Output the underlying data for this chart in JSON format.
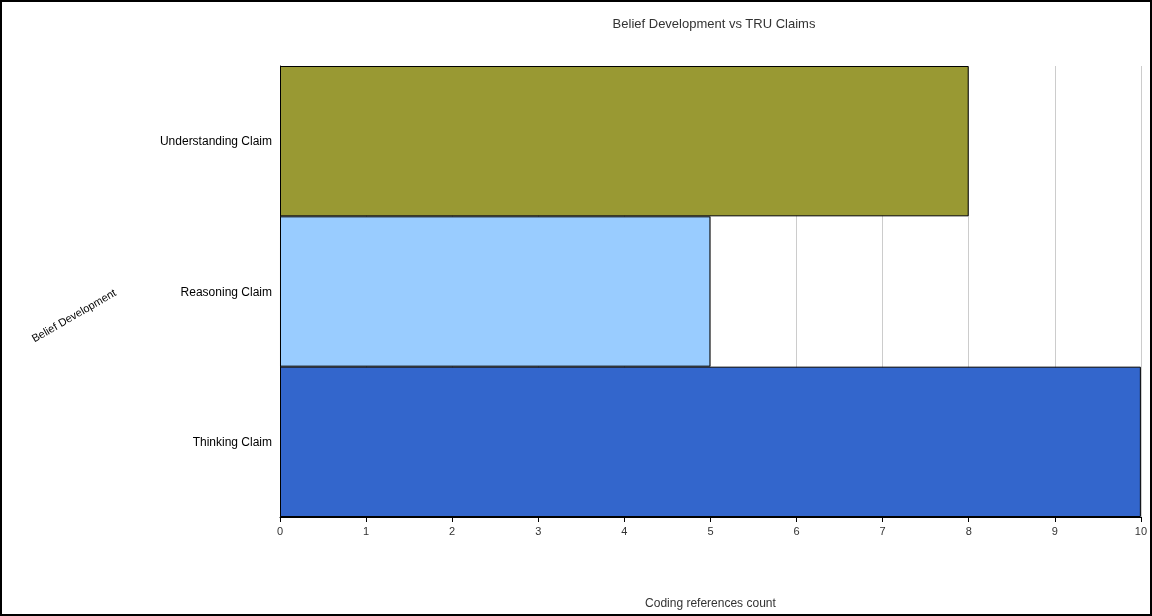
{
  "chart_data": {
    "type": "bar",
    "orientation": "horizontal",
    "title": "Belief Development vs TRU Claims",
    "xlabel": "Coding references count",
    "ylabel": "Belief Development",
    "categories": [
      "Understanding Claim",
      "Reasoning Claim",
      "Thinking Claim"
    ],
    "values": [
      8,
      5,
      10
    ],
    "colors": [
      "#999933",
      "#99ccff",
      "#3366cc"
    ],
    "xlim": [
      0,
      10
    ],
    "xticks": [
      0,
      1,
      2,
      3,
      4,
      5,
      6,
      7,
      8,
      9,
      10
    ],
    "grid": "x"
  }
}
